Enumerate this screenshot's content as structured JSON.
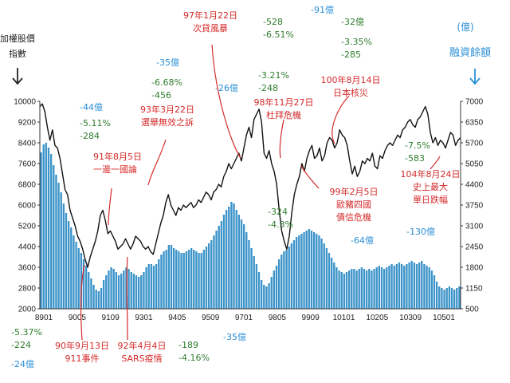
{
  "chart_data": {
    "type": "bar",
    "title": "",
    "left_axis": {
      "title": "加權股價指數",
      "ticks": [
        2000,
        2800,
        3600,
        4400,
        5200,
        6000,
        6800,
        7600,
        8400,
        9200,
        10000
      ],
      "range": [
        2000,
        10000
      ]
    },
    "right_axis": {
      "title": "(億)融資餘額",
      "ticks": [
        500,
        1150,
        1800,
        2450,
        3100,
        3750,
        4400,
        5050,
        5700,
        6350,
        7000
      ],
      "range": [
        500,
        7000
      ]
    },
    "x_ticks": [
      "8901",
      "9005",
      "9109",
      "9301",
      "9405",
      "9509",
      "9701",
      "9805",
      "9909",
      "10101",
      "10205",
      "10309",
      "10501"
    ],
    "series": [
      {
        "kind": "line",
        "values": [
          9800,
          9900,
          9600,
          9000,
          8500,
          8900,
          8300,
          8200,
          7800,
          7200,
          6600,
          6400,
          5800,
          5500,
          5200,
          4800,
          4600,
          4300,
          3900,
          3600,
          4000,
          4300,
          4600,
          5000,
          5600,
          5800,
          5400,
          4900,
          5000,
          4800,
          4600,
          4300,
          4400,
          4500,
          4700,
          4500,
          4300,
          4500,
          4800,
          4700,
          4600,
          4400,
          4300,
          4400,
          4200,
          4100,
          4500,
          4900,
          5300,
          5600,
          6100,
          6400,
          6000,
          5800,
          5600,
          5900,
          5800,
          6000,
          5900,
          6000,
          6100,
          5900,
          6000,
          6200,
          6100,
          6300,
          6500,
          6400,
          6200,
          6500,
          6600,
          6800,
          6700,
          7100,
          7300,
          7600,
          7400,
          7600,
          7800,
          8000,
          7700,
          8200,
          8700,
          9000,
          8600,
          9300,
          9500,
          9700,
          9200,
          8000,
          7800,
          8100,
          7600,
          7300,
          6800,
          5800,
          5000,
          4600,
          4300,
          4800,
          5700,
          6400,
          6800,
          7100,
          7600,
          7300,
          7800,
          8100,
          8300,
          7800,
          7900,
          8200,
          7700,
          7900,
          8400,
          8600,
          8500,
          8200,
          8400,
          8900,
          8700,
          8600,
          8300,
          7700,
          7200,
          7500,
          7100,
          7300,
          7700,
          7600,
          7800,
          7700,
          8000,
          7500,
          7400,
          7900,
          7800,
          8100,
          8300,
          8400,
          8300,
          8500,
          8700,
          8600,
          8900,
          9000,
          9200,
          9300,
          9100,
          9000,
          9300,
          9400,
          9600,
          9800,
          9500,
          8800,
          8400,
          8600,
          8300,
          8500,
          8400,
          8200,
          8500,
          8800,
          8700,
          8300,
          8500,
          8600
        ]
      },
      {
        "kind": "bar",
        "values": [
          5400,
          5650,
          5700,
          5550,
          5350,
          5000,
          4700,
          4450,
          4150,
          3800,
          3500,
          3250,
          3050,
          2800,
          2600,
          2400,
          2250,
          2050,
          1850,
          1650,
          1450,
          1250,
          1100,
          1050,
          1150,
          1400,
          1550,
          1700,
          1800,
          1750,
          1650,
          1550,
          1600,
          1700,
          1800,
          1750,
          1650,
          1600,
          1550,
          1500,
          1550,
          1650,
          1800,
          1900,
          1900,
          1850,
          1900,
          2050,
          2200,
          2300,
          2350,
          2500,
          2500,
          2400,
          2350,
          2300,
          2250,
          2250,
          2300,
          2350,
          2400,
          2350,
          2300,
          2250,
          2250,
          2350,
          2450,
          2550,
          2650,
          2800,
          2950,
          3100,
          3250,
          3450,
          3600,
          3700,
          3850,
          3800,
          3600,
          3450,
          3300,
          3150,
          2900,
          2650,
          2400,
          2150,
          1900,
          1650,
          1400,
          1250,
          1200,
          1300,
          1500,
          1700,
          1850,
          2050,
          2200,
          2300,
          2350,
          2450,
          2550,
          2650,
          2750,
          2800,
          2850,
          2900,
          2950,
          3000,
          2950,
          2900,
          2850,
          2800,
          2700,
          2550,
          2400,
          2250,
          2100,
          1950,
          1800,
          1700,
          1650,
          1600,
          1650,
          1700,
          1750,
          1750,
          1700,
          1750,
          1800,
          1750,
          1700,
          1750,
          1700,
          1750,
          1800,
          1850,
          1800,
          1750,
          1800,
          1850,
          1900,
          1850,
          1900,
          1950,
          1900,
          1850,
          1900,
          1950,
          2000,
          1950,
          1900,
          1950,
          2000,
          1900,
          1850,
          1800,
          1700,
          1550,
          1350,
          1200,
          1150,
          1100,
          1150,
          1200,
          1150,
          1100,
          1150,
          1200
        ]
      }
    ],
    "annotations": [
      {
        "lines": [
          "97年1月22日",
          "次貸風暴"
        ],
        "color": "red"
      },
      {
        "lines": [
          "98年11月27日",
          "杜拜危機"
        ],
        "color": "red"
      },
      {
        "lines": [
          "100年8月14日",
          "日本核災"
        ],
        "color": "red"
      },
      {
        "lines": [
          "93年3月22日",
          "選舉無效之訴"
        ],
        "color": "red"
      },
      {
        "lines": [
          "91年8月5日",
          "一邊一國論"
        ],
        "color": "red"
      },
      {
        "lines": [
          "90年9月13日",
          "911事件"
        ],
        "color": "red"
      },
      {
        "lines": [
          "92年4月4日",
          "SARS疫情"
        ],
        "color": "red"
      },
      {
        "lines": [
          "99年2月5日",
          "歐豬四國",
          "債信危機"
        ],
        "color": "red"
      },
      {
        "lines": [
          "104年8月24日",
          "史上最大",
          "單日跌幅"
        ],
        "color": "red"
      },
      {
        "lines": [
          "-528",
          "-6.51%"
        ],
        "color": "green"
      },
      {
        "lines": [
          "-91億"
        ],
        "color": "blue"
      },
      {
        "lines": [
          "-32億"
        ],
        "color": "green"
      },
      {
        "lines": [
          "-3.35%",
          "-285"
        ],
        "color": "green"
      },
      {
        "lines": [
          "-35億"
        ],
        "color": "blue"
      },
      {
        "lines": [
          "-6.68%",
          "-456"
        ],
        "color": "green"
      },
      {
        "lines": [
          "-26億"
        ],
        "color": "blue"
      },
      {
        "lines": [
          "-3.21%",
          "-248"
        ],
        "color": "green"
      },
      {
        "lines": [
          "-44億"
        ],
        "color": "blue"
      },
      {
        "lines": [
          "-5.11%",
          "-284"
        ],
        "color": "green"
      },
      {
        "lines": [
          "-324",
          "-4.3%"
        ],
        "color": "green"
      },
      {
        "lines": [
          "-64億"
        ],
        "color": "blue"
      },
      {
        "lines": [
          "-7.5%",
          "-583"
        ],
        "color": "green"
      },
      {
        "lines": [
          "-130億"
        ],
        "color": "blue"
      },
      {
        "lines": [
          "-5.37%",
          "-224"
        ],
        "color": "green"
      },
      {
        "lines": [
          "-24億"
        ],
        "color": "blue"
      },
      {
        "lines": [
          "-189",
          "-4.16%"
        ],
        "color": "green"
      },
      {
        "lines": [
          "-35億"
        ],
        "color": "blue"
      }
    ],
    "colors": {
      "bars": "#3b93c9",
      "line": "#111111",
      "red_notes": "#d42a2a",
      "green_notes": "#2f7d2f",
      "blue_notes": "#2a8fd6"
    },
    "grid": false
  }
}
